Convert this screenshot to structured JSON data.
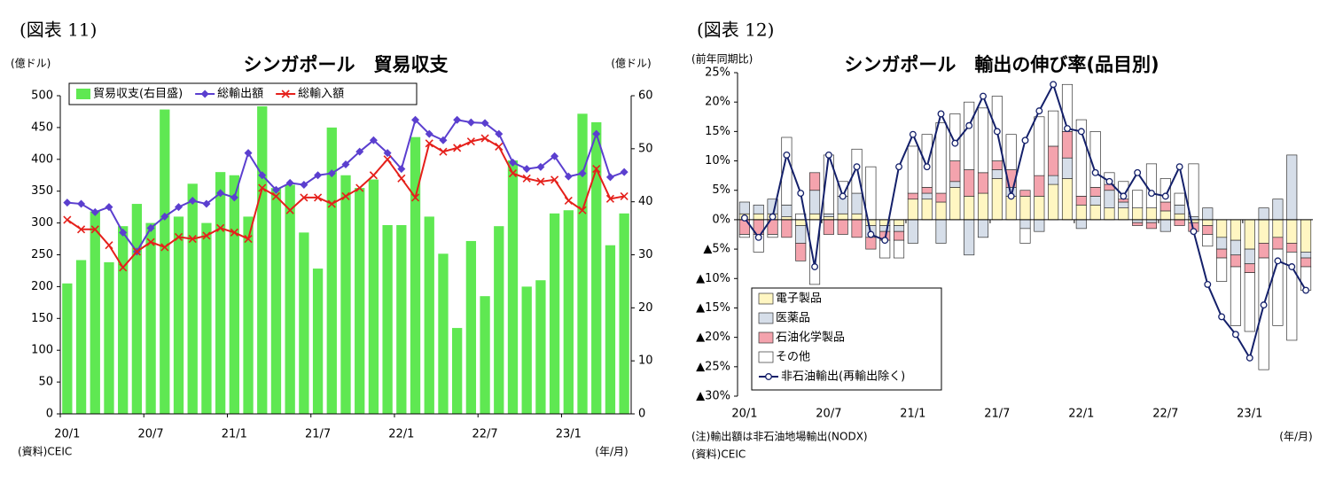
{
  "chart_data": [
    {
      "type": "bar_line",
      "figure_label": "(図表 11)",
      "title": "シンガポール　貿易収支",
      "y_unit": "(億ドル)",
      "y2_unit": "(億ドル)",
      "x_unit": "(年/月)",
      "source": "(資料)CEIC",
      "categories": [
        "20/1",
        null,
        null,
        null,
        null,
        null,
        "20/7",
        null,
        null,
        null,
        null,
        null,
        "21/1",
        null,
        null,
        null,
        null,
        null,
        "21/7",
        null,
        null,
        null,
        null,
        null,
        "22/1",
        null,
        null,
        null,
        null,
        null,
        "22/7",
        null,
        null,
        null,
        null,
        null,
        "23/1",
        null,
        null,
        null,
        null
      ],
      "ylim": [
        0,
        500
      ],
      "yticks": [
        0,
        50,
        100,
        150,
        200,
        250,
        300,
        350,
        400,
        450,
        500
      ],
      "y2lim": [
        0,
        60
      ],
      "y2ticks": [
        0,
        10,
        20,
        30,
        40,
        50,
        60
      ],
      "series": [
        {
          "name": "貿易収支(右目盛)",
          "kind": "bar",
          "axis": "y2",
          "color": "#5fe852",
          "values": [
            24.6,
            29.0,
            38.2,
            28.6,
            35.4,
            39.6,
            36.0,
            57.4,
            37.2,
            43.4,
            36.0,
            45.6,
            45.0,
            37.2,
            58.0,
            42.6,
            43.2,
            34.2,
            27.4,
            54.0,
            45.0,
            42.6,
            44.2,
            35.6,
            35.6,
            52.2,
            37.2,
            30.2,
            16.2,
            32.6,
            22.2,
            35.4,
            47.8,
            24.0,
            25.2,
            37.8,
            38.4,
            56.6,
            55.0,
            31.8,
            37.8
          ]
        },
        {
          "name": "総輸出額",
          "kind": "line",
          "marker": "diamond",
          "color": "#5b3fcf",
          "values": [
            332,
            330,
            317,
            325,
            285,
            255,
            292,
            310,
            325,
            335,
            330,
            347,
            340,
            410,
            375,
            352,
            363,
            360,
            375,
            378,
            392,
            412,
            430,
            410,
            385,
            462,
            440,
            430,
            462,
            458,
            457,
            440,
            395,
            385,
            388,
            405,
            373,
            378,
            440,
            372,
            380
          ]
        },
        {
          "name": "総輸入額",
          "kind": "line",
          "marker": "x",
          "color": "#e5201b",
          "values": [
            305,
            290,
            290,
            265,
            230,
            255,
            270,
            262,
            278,
            275,
            280,
            292,
            285,
            275,
            355,
            342,
            320,
            340,
            340,
            330,
            342,
            355,
            375,
            400,
            370,
            340,
            425,
            412,
            418,
            428,
            433,
            420,
            378,
            370,
            365,
            368,
            335,
            320,
            385,
            338,
            342
          ]
        }
      ]
    },
    {
      "type": "stacked_bar_line",
      "figure_label": "(図表 12)",
      "title": "シンガポール　輸出の伸び率(品目別)",
      "y_unit": "(前年同期比)",
      "x_unit": "(年/月)",
      "note": "(注)輸出額は非石油地場輸出(NODX)",
      "source": "(資料)CEIC",
      "categories": [
        "20/1",
        null,
        null,
        null,
        null,
        null,
        "20/7",
        null,
        null,
        null,
        null,
        null,
        "21/1",
        null,
        null,
        null,
        null,
        null,
        "21/7",
        null,
        null,
        null,
        null,
        null,
        "22/1",
        null,
        null,
        null,
        null,
        null,
        "22/7",
        null,
        null,
        null,
        null,
        null,
        "23/1",
        null,
        null,
        null,
        null
      ],
      "ylim": [
        -30,
        25
      ],
      "yticks": [
        {
          "value": 25,
          "label": "25%"
        },
        {
          "value": 20,
          "label": "20%"
        },
        {
          "value": 15,
          "label": "15%"
        },
        {
          "value": 10,
          "label": "10%"
        },
        {
          "value": 5,
          "label": "5%"
        },
        {
          "value": 0,
          "label": "0%"
        },
        {
          "value": -5,
          "label": "▲5%"
        },
        {
          "value": -10,
          "label": "▲10%"
        },
        {
          "value": -15,
          "label": "▲15%"
        },
        {
          "value": -20,
          "label": "▲20%"
        },
        {
          "value": -25,
          "label": "▲25%"
        },
        {
          "value": -30,
          "label": "▲30%"
        }
      ],
      "series": [
        {
          "name": "電子製品",
          "kind": "bar",
          "color": "#fff6c2",
          "values": [
            1,
            1,
            1,
            0.5,
            -1,
            1,
            0.5,
            1,
            1,
            -1,
            -1,
            -1,
            3.5,
            3.5,
            3,
            5.5,
            4,
            4.5,
            7,
            4,
            4,
            4,
            6,
            7,
            2.5,
            2.5,
            2,
            2,
            2,
            2,
            1.5,
            1,
            -0.5,
            -1,
            -3,
            -3.5,
            -5,
            -4,
            -3,
            -4,
            -5.5
          ]
        },
        {
          "name": "医薬品",
          "kind": "bar",
          "color": "#d6dee9",
          "values": [
            2,
            1.5,
            2.5,
            2,
            -3,
            4,
            0.5,
            3,
            3.5,
            -2,
            -1,
            -1,
            -4,
            1,
            -4,
            1,
            -6,
            -3,
            1.5,
            1.5,
            -1.5,
            -2,
            1.5,
            3.5,
            -1.5,
            1.5,
            3,
            1,
            -0.5,
            -0.5,
            -2,
            1.5,
            0.5,
            2,
            -2,
            -2.5,
            -2.5,
            2,
            3.5,
            11,
            -1
          ]
        },
        {
          "name": "石油化学製品",
          "kind": "bar",
          "color": "#f4a3ad",
          "values": [
            -2.5,
            -2.5,
            -2.5,
            -3,
            -3,
            3,
            -2.5,
            -2.5,
            -3,
            -2,
            -1.5,
            -1.5,
            1,
            1,
            1.5,
            3.5,
            4.5,
            3.5,
            1.5,
            3,
            1,
            3.5,
            5,
            4.5,
            1.5,
            1.5,
            1,
            0.5,
            -0.5,
            -1,
            1.5,
            -1,
            -1.5,
            -1.5,
            -1.5,
            -2,
            -1.5,
            -2.5,
            -2,
            -1.5,
            -1.5
          ]
        },
        {
          "name": "その他",
          "kind": "bar",
          "color": "#ffffff",
          "values": [
            -0.5,
            -3,
            -0.5,
            11.5,
            1,
            -11,
            10,
            2.5,
            7.5,
            9,
            -3,
            -3,
            8,
            9,
            12,
            8,
            11.5,
            11,
            11,
            6,
            -2.5,
            10,
            6,
            8,
            13,
            9.5,
            2,
            3,
            3,
            7.5,
            4,
            2,
            9,
            -2,
            -4,
            -10,
            -10,
            -19,
            -13,
            -15,
            -4
          ]
        },
        {
          "name": "非石油輸出(再輸出除く)",
          "kind": "line",
          "marker": "circle",
          "color": "#14206a",
          "values": [
            0.3,
            -3,
            0.5,
            11,
            4.5,
            -8,
            11,
            4,
            9,
            -2.5,
            -3.5,
            9,
            14.5,
            9,
            18,
            13,
            16,
            21,
            15,
            4,
            13.5,
            18.5,
            23,
            15.5,
            15,
            8,
            6.5,
            4,
            8,
            4.5,
            4,
            9,
            -2,
            -11,
            -16.5,
            -19.5,
            -23.5,
            -14.5,
            -7,
            -8,
            -12
          ]
        }
      ]
    }
  ]
}
